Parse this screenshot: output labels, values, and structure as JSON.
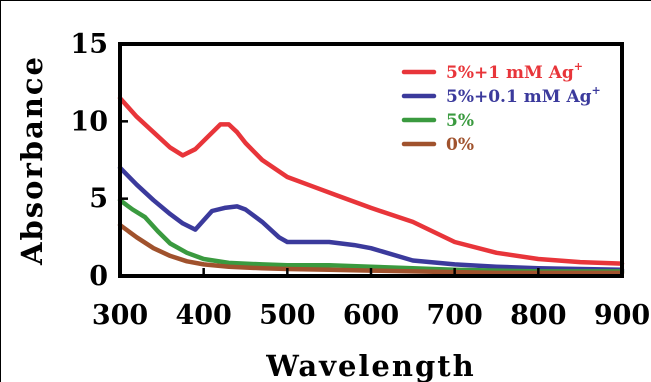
{
  "chart_data": {
    "type": "line",
    "xlabel": "Wavelength",
    "ylabel": "Absorbance",
    "xlim": [
      300,
      900
    ],
    "ylim": [
      0,
      15
    ],
    "xticks": [
      "300",
      "400",
      "500",
      "600",
      "700",
      "800",
      "900"
    ],
    "yticks": [
      "0",
      "5",
      "10",
      "15"
    ],
    "legend_position": "top-right",
    "grid": false,
    "series": [
      {
        "name": "5%+1 mM Ag",
        "name_sup": "+",
        "color": "#e8353a",
        "x": [
          300,
          320,
          340,
          360,
          375,
          390,
          405,
          420,
          430,
          440,
          450,
          470,
          500,
          530,
          560,
          600,
          650,
          700,
          750,
          800,
          850,
          900
        ],
        "y": [
          11.5,
          10.3,
          9.3,
          8.3,
          7.8,
          8.2,
          9.0,
          9.8,
          9.8,
          9.3,
          8.6,
          7.5,
          6.4,
          5.8,
          5.2,
          4.4,
          3.5,
          2.2,
          1.5,
          1.1,
          0.9,
          0.8
        ]
      },
      {
        "name": "5%+0.1 mM Ag",
        "name_sup": "+",
        "color": "#3b3a9c",
        "x": [
          300,
          320,
          340,
          360,
          375,
          390,
          400,
          410,
          425,
          440,
          450,
          470,
          490,
          500,
          520,
          550,
          580,
          600,
          650,
          700,
          750,
          800,
          850,
          900
        ],
        "y": [
          7.0,
          5.9,
          4.9,
          4.0,
          3.4,
          3.0,
          3.6,
          4.2,
          4.4,
          4.5,
          4.3,
          3.5,
          2.5,
          2.2,
          2.2,
          2.2,
          2.0,
          1.8,
          1.0,
          0.75,
          0.6,
          0.5,
          0.45,
          0.4
        ]
      },
      {
        "name": "5%",
        "name_sup": "",
        "color": "#3a9a3f",
        "x": [
          300,
          315,
          330,
          345,
          360,
          380,
          400,
          430,
          470,
          500,
          550,
          600,
          650,
          700,
          750,
          800,
          850,
          900
        ],
        "y": [
          4.9,
          4.3,
          3.8,
          2.9,
          2.1,
          1.5,
          1.1,
          0.85,
          0.75,
          0.7,
          0.7,
          0.6,
          0.5,
          0.4,
          0.35,
          0.3,
          0.3,
          0.3
        ]
      },
      {
        "name": "0%",
        "name_sup": "",
        "color": "#a0522d",
        "x": [
          300,
          320,
          340,
          360,
          380,
          400,
          430,
          470,
          500,
          550,
          600,
          650,
          700,
          750,
          800,
          850,
          900
        ],
        "y": [
          3.3,
          2.5,
          1.8,
          1.3,
          0.95,
          0.75,
          0.6,
          0.5,
          0.45,
          0.4,
          0.35,
          0.3,
          0.25,
          0.2,
          0.2,
          0.2,
          0.2
        ]
      }
    ]
  }
}
